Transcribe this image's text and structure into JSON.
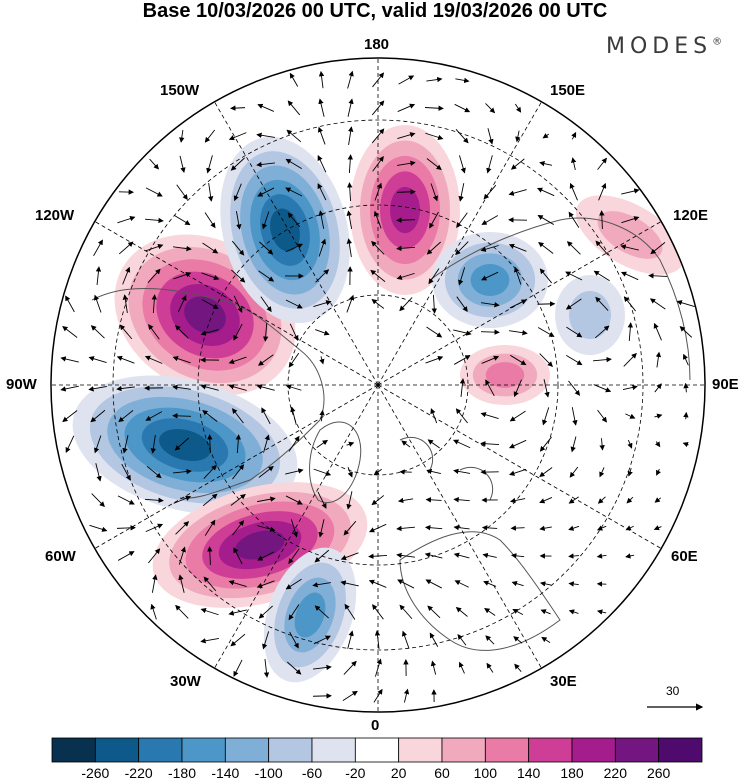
{
  "title": "Base 10/03/2026 00 UTC, valid 19/03/2026 00 UTC",
  "brand": "MODES",
  "brand_mark": "®",
  "longitude_labels": {
    "top": "180",
    "bottom": "0",
    "left": "90W",
    "right": "90E",
    "upper_left_1": "150W",
    "upper_left_2": "120W",
    "upper_right_1": "150E",
    "upper_right_2": "120E",
    "lower_left_1": "60W",
    "lower_left_2": "30W",
    "lower_right_1": "60E",
    "lower_right_2": "30E"
  },
  "vector_reference": {
    "value": "30"
  },
  "colorbar": {
    "labels": [
      "-260",
      "-220",
      "-180",
      "-140",
      "-100",
      "-60",
      "-20",
      "20",
      "60",
      "100",
      "140",
      "180",
      "220",
      "260"
    ],
    "colors": [
      "#08304f",
      "#0d5a8a",
      "#2a78b0",
      "#4d96c8",
      "#7faed6",
      "#b3c6e2",
      "#dfe3f0",
      "#ffffff",
      "#f9d6dc",
      "#f1a9bd",
      "#ea7aa6",
      "#cf3e96",
      "#a51d8c",
      "#741680",
      "#4e0b6d"
    ]
  },
  "anomaly_centers": [
    {
      "name": "positive-anomaly-alaska",
      "value": 260
    },
    {
      "name": "negative-anomaly-canada",
      "value": -260
    },
    {
      "name": "positive-anomaly-north-atlantic",
      "value": 260
    },
    {
      "name": "negative-anomaly-aleutian",
      "value": -240
    },
    {
      "name": "positive-anomaly-bering",
      "value": 220
    },
    {
      "name": "negative-anomaly-east-siberia",
      "value": -180
    },
    {
      "name": "negative-anomaly-azores",
      "value": -160
    },
    {
      "name": "positive-anomaly-central-siberia",
      "value": 120
    },
    {
      "name": "negative-anomaly-lake-baikal",
      "value": -100
    },
    {
      "name": "positive-anomaly-japan",
      "value": 100
    }
  ]
}
